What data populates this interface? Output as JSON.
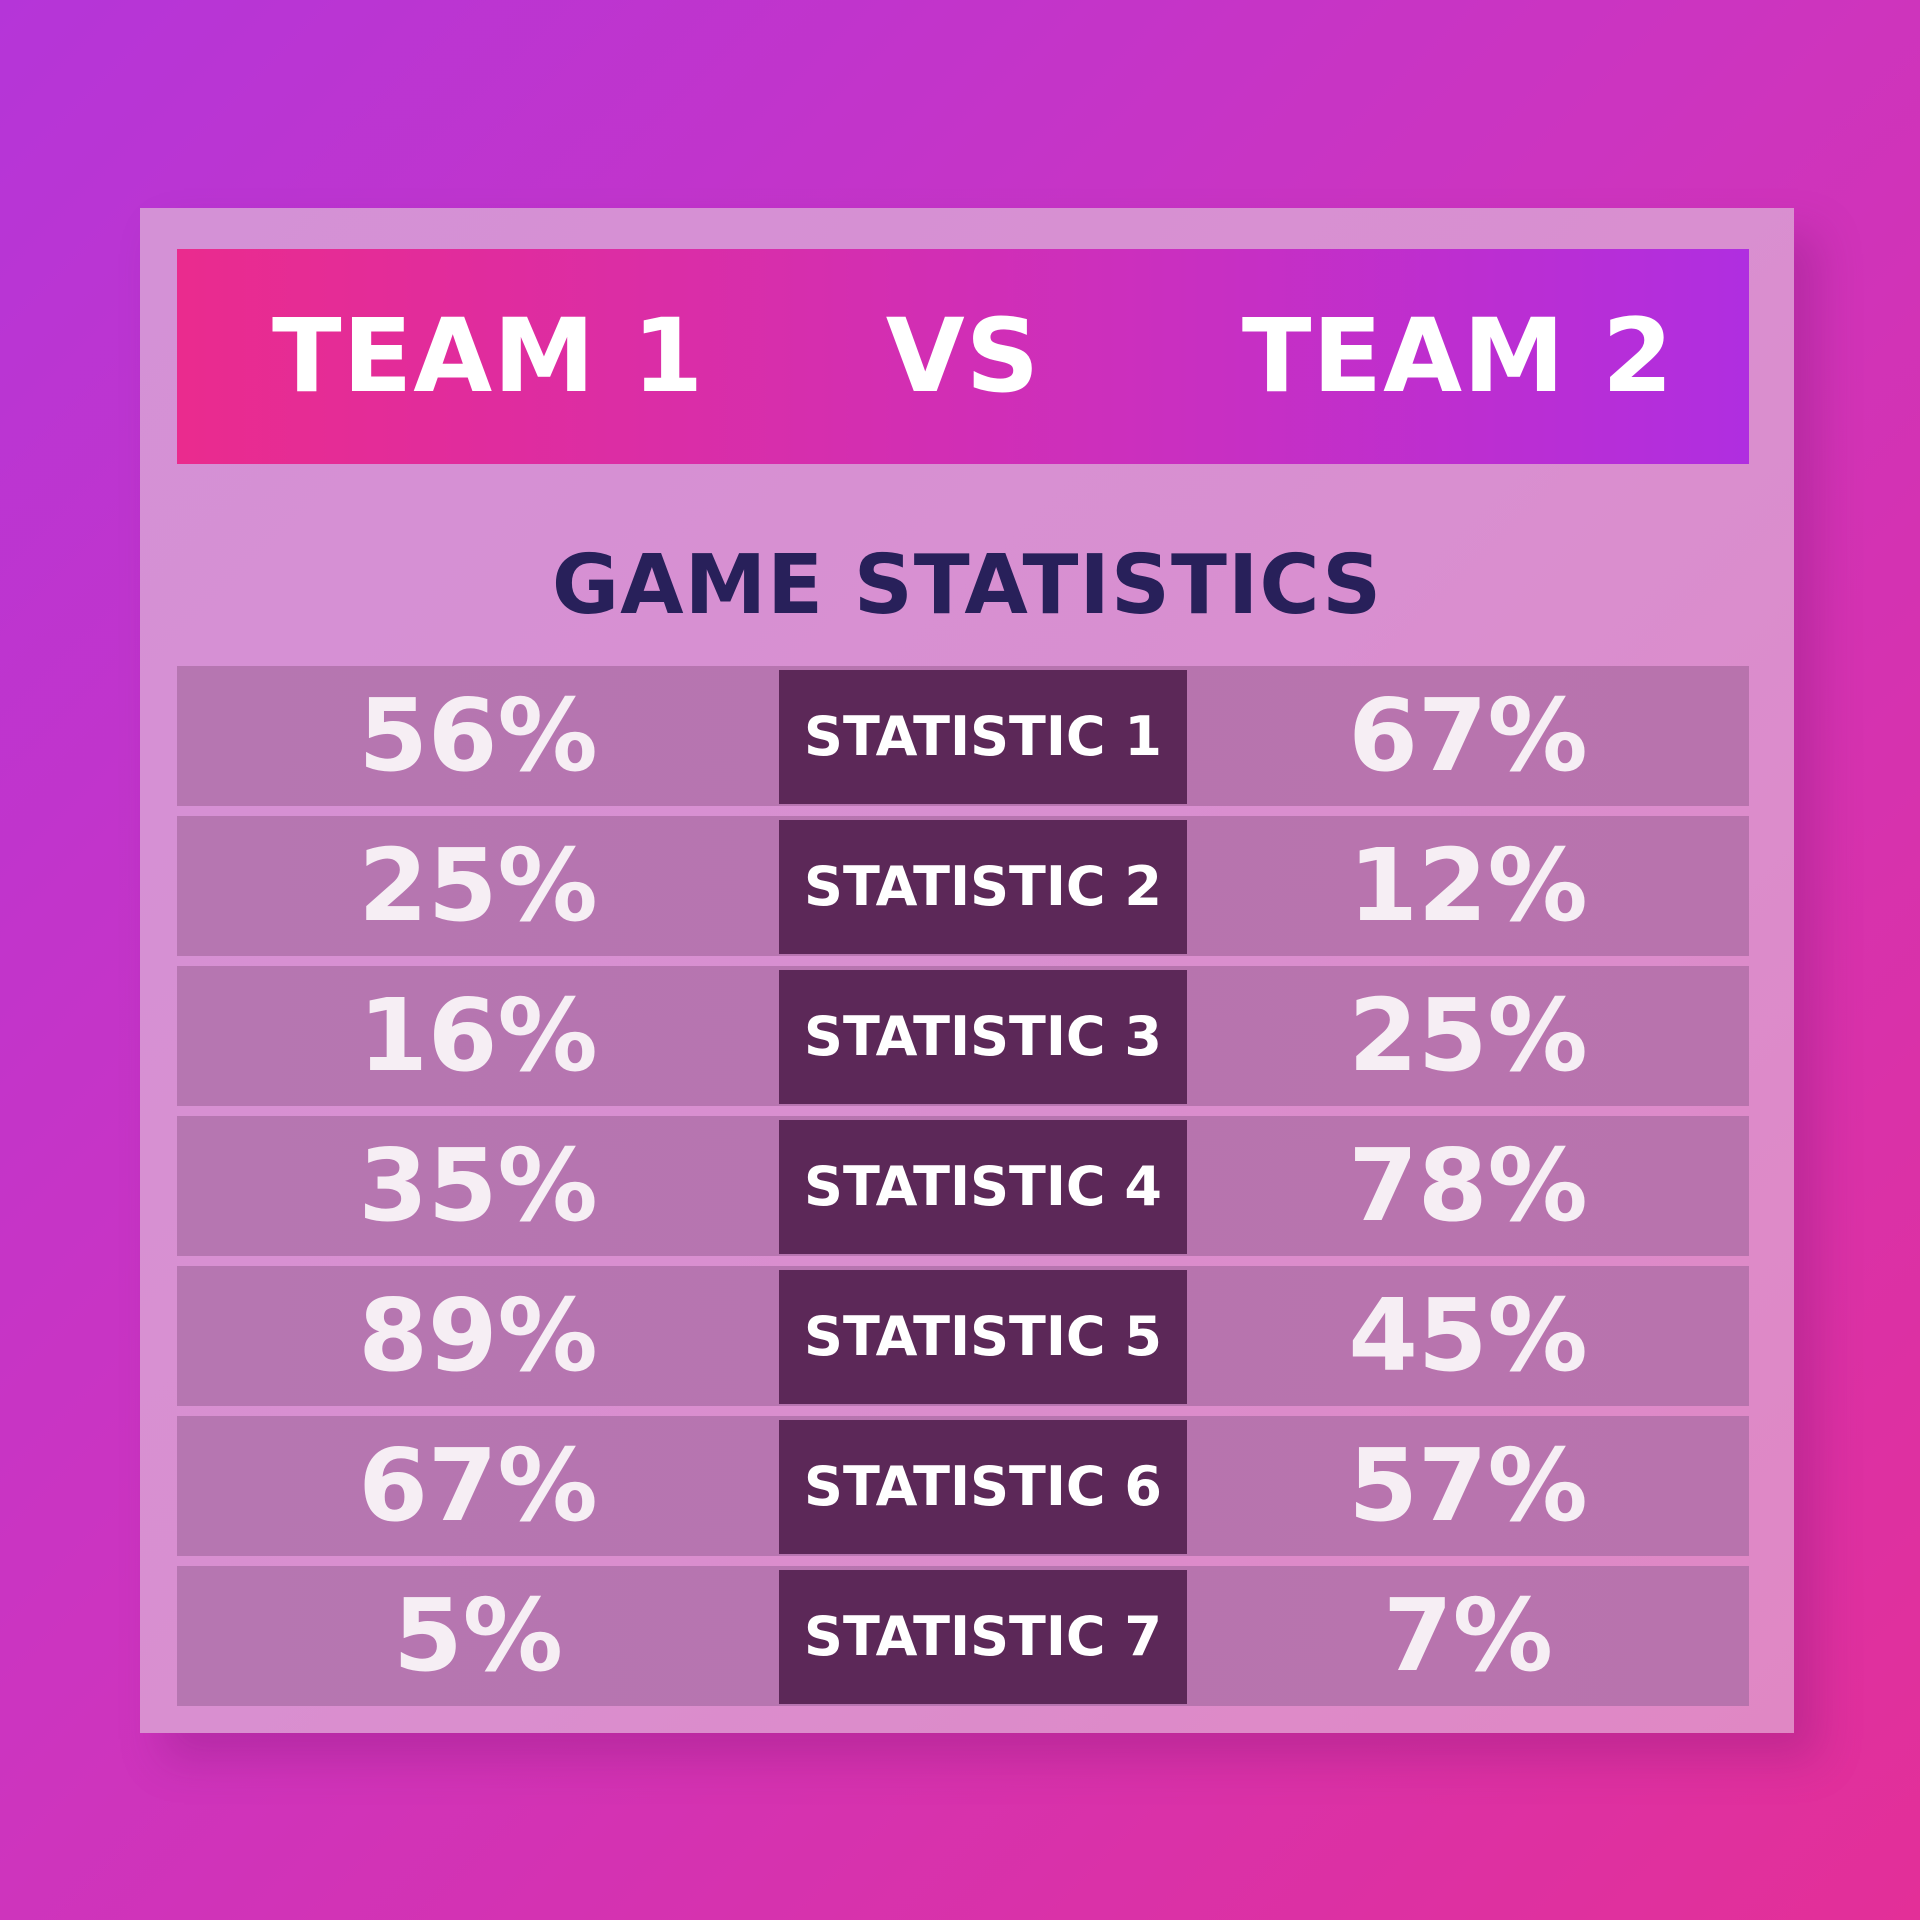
{
  "header": {
    "team1": "TEAM 1",
    "vs": "VS",
    "team2": "TEAM 2"
  },
  "title": "GAME STATISTICS",
  "stats": [
    {
      "label": "STATISTIC 1",
      "team1": "56%",
      "team2": "67%"
    },
    {
      "label": "STATISTIC 2",
      "team1": "25%",
      "team2": "12%"
    },
    {
      "label": "STATISTIC 3",
      "team1": "16%",
      "team2": "25%"
    },
    {
      "label": "STATISTIC 4",
      "team1": "35%",
      "team2": "78%"
    },
    {
      "label": "STATISTIC 5",
      "team1": "89%",
      "team2": "45%"
    },
    {
      "label": "STATISTIC 6",
      "team1": "67%",
      "team2": "57%"
    },
    {
      "label": "STATISTIC 7",
      "team1": "5%",
      "team2": "7%"
    }
  ],
  "colors": {
    "background_start": "#b535d8",
    "background_end": "#e32f98",
    "card": "#d98fd0",
    "header_start": "#ea2b8e",
    "header_end": "#b02ee0",
    "title_text": "#28205a",
    "row": "#b676b1",
    "label_bg": "#5c2858",
    "value_text": "#f6eef4"
  }
}
